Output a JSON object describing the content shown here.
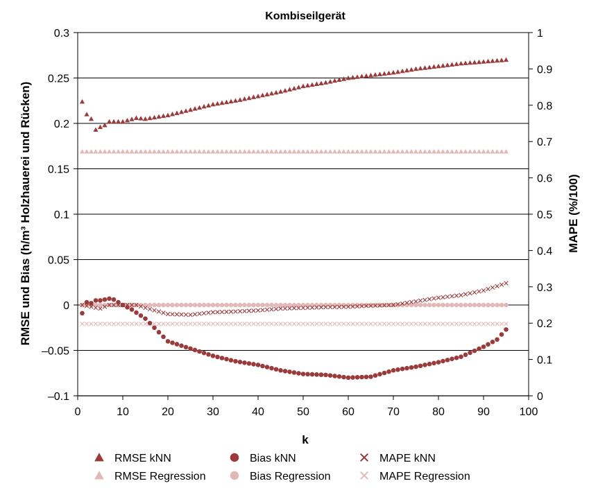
{
  "colors": {
    "knn": "#9b3a3b",
    "regression": "#e3b9b8",
    "gridline": "#000000"
  },
  "chart_data": {
    "type": "scatter",
    "title": "Kombiseilgerät",
    "xlabel": "k",
    "ylabel_left": "RMSE und Bias (h/m³ Holzhauerei und Rücken)",
    "ylabel_right": "MAPE (%/100)",
    "xlim": [
      0,
      100
    ],
    "ylim_left": [
      -0.1,
      0.3
    ],
    "ylim_right": [
      0,
      1
    ],
    "x_ticks": [
      "0",
      "10",
      "20",
      "30",
      "40",
      "50",
      "60",
      "70",
      "80",
      "90",
      "100"
    ],
    "y_ticks_left": [
      "0.3",
      "0.25",
      "0.2",
      "0.15",
      "0.1",
      "0.05",
      "0",
      "–0.05",
      "–0.1"
    ],
    "y_ticks_right": [
      "1",
      "0.9",
      "0.8",
      "0.7",
      "0.6",
      "0.5",
      "0.4",
      "0.3",
      "0.2",
      "0.1",
      "0"
    ],
    "grid": "horizontal",
    "legend_position": "bottom",
    "series": [
      {
        "name": "RMSE kNN",
        "marker": "triangle",
        "axis": "left",
        "color": "#9b3a3b",
        "points": [
          [
            1,
            0.224
          ],
          [
            2,
            0.21
          ],
          [
            3,
            0.205
          ],
          [
            4,
            0.193
          ],
          [
            5,
            0.196
          ],
          [
            6,
            0.198
          ],
          [
            7,
            0.202
          ],
          [
            10,
            0.202
          ],
          [
            13,
            0.206
          ],
          [
            15,
            0.205
          ],
          [
            20,
            0.209
          ],
          [
            25,
            0.215
          ],
          [
            30,
            0.221
          ],
          [
            35,
            0.225
          ],
          [
            40,
            0.23
          ],
          [
            45,
            0.235
          ],
          [
            50,
            0.241
          ],
          [
            55,
            0.245
          ],
          [
            60,
            0.25
          ],
          [
            65,
            0.253
          ],
          [
            70,
            0.256
          ],
          [
            75,
            0.26
          ],
          [
            80,
            0.263
          ],
          [
            85,
            0.266
          ],
          [
            90,
            0.268
          ],
          [
            95,
            0.27
          ]
        ]
      },
      {
        "name": "Bias kNN",
        "marker": "circle",
        "axis": "left",
        "color": "#9b3a3b",
        "points": [
          [
            1,
            -0.009
          ],
          [
            2,
            0.003
          ],
          [
            3,
            0.002
          ],
          [
            4,
            0.005
          ],
          [
            5,
            0.005
          ],
          [
            6,
            0.006
          ],
          [
            7,
            0.007
          ],
          [
            8,
            0.006
          ],
          [
            9,
            0.003
          ],
          [
            10,
            0.0
          ],
          [
            12,
            -0.005
          ],
          [
            15,
            -0.015
          ],
          [
            18,
            -0.03
          ],
          [
            20,
            -0.04
          ],
          [
            25,
            -0.048
          ],
          [
            30,
            -0.056
          ],
          [
            35,
            -0.062
          ],
          [
            40,
            -0.066
          ],
          [
            45,
            -0.072
          ],
          [
            50,
            -0.076
          ],
          [
            55,
            -0.077
          ],
          [
            60,
            -0.08
          ],
          [
            65,
            -0.079
          ],
          [
            70,
            -0.072
          ],
          [
            75,
            -0.068
          ],
          [
            80,
            -0.063
          ],
          [
            85,
            -0.057
          ],
          [
            90,
            -0.046
          ],
          [
            93,
            -0.038
          ],
          [
            95,
            -0.027
          ]
        ]
      },
      {
        "name": "MAPE kNN",
        "marker": "x",
        "axis": "right",
        "color": "#9b3a3b",
        "points": [
          [
            1,
            0.25
          ],
          [
            3,
            0.245
          ],
          [
            5,
            0.24
          ],
          [
            7,
            0.25
          ],
          [
            10,
            0.25
          ],
          [
            13,
            0.25
          ],
          [
            15,
            0.242
          ],
          [
            18,
            0.232
          ],
          [
            20,
            0.225
          ],
          [
            25,
            0.223
          ],
          [
            30,
            0.23
          ],
          [
            35,
            0.232
          ],
          [
            40,
            0.235
          ],
          [
            45,
            0.24
          ],
          [
            50,
            0.242
          ],
          [
            55,
            0.244
          ],
          [
            60,
            0.245
          ],
          [
            65,
            0.248
          ],
          [
            70,
            0.25
          ],
          [
            75,
            0.26
          ],
          [
            80,
            0.27
          ],
          [
            85,
            0.277
          ],
          [
            90,
            0.29
          ],
          [
            95,
            0.31
          ]
        ]
      },
      {
        "name": "RMSE Regression",
        "marker": "triangle",
        "axis": "left",
        "color": "#e3b9b8",
        "points": [
          [
            1,
            0.169
          ],
          [
            95,
            0.169
          ]
        ]
      },
      {
        "name": "Bias Regression",
        "marker": "circle",
        "axis": "left",
        "color": "#e3b9b8",
        "points": [
          [
            1,
            0.0
          ],
          [
            95,
            0.0
          ]
        ]
      },
      {
        "name": "MAPE Regression",
        "marker": "x",
        "axis": "right",
        "color": "#e3b9b8",
        "points": [
          [
            1,
            0.198
          ],
          [
            95,
            0.198
          ]
        ]
      }
    ]
  }
}
